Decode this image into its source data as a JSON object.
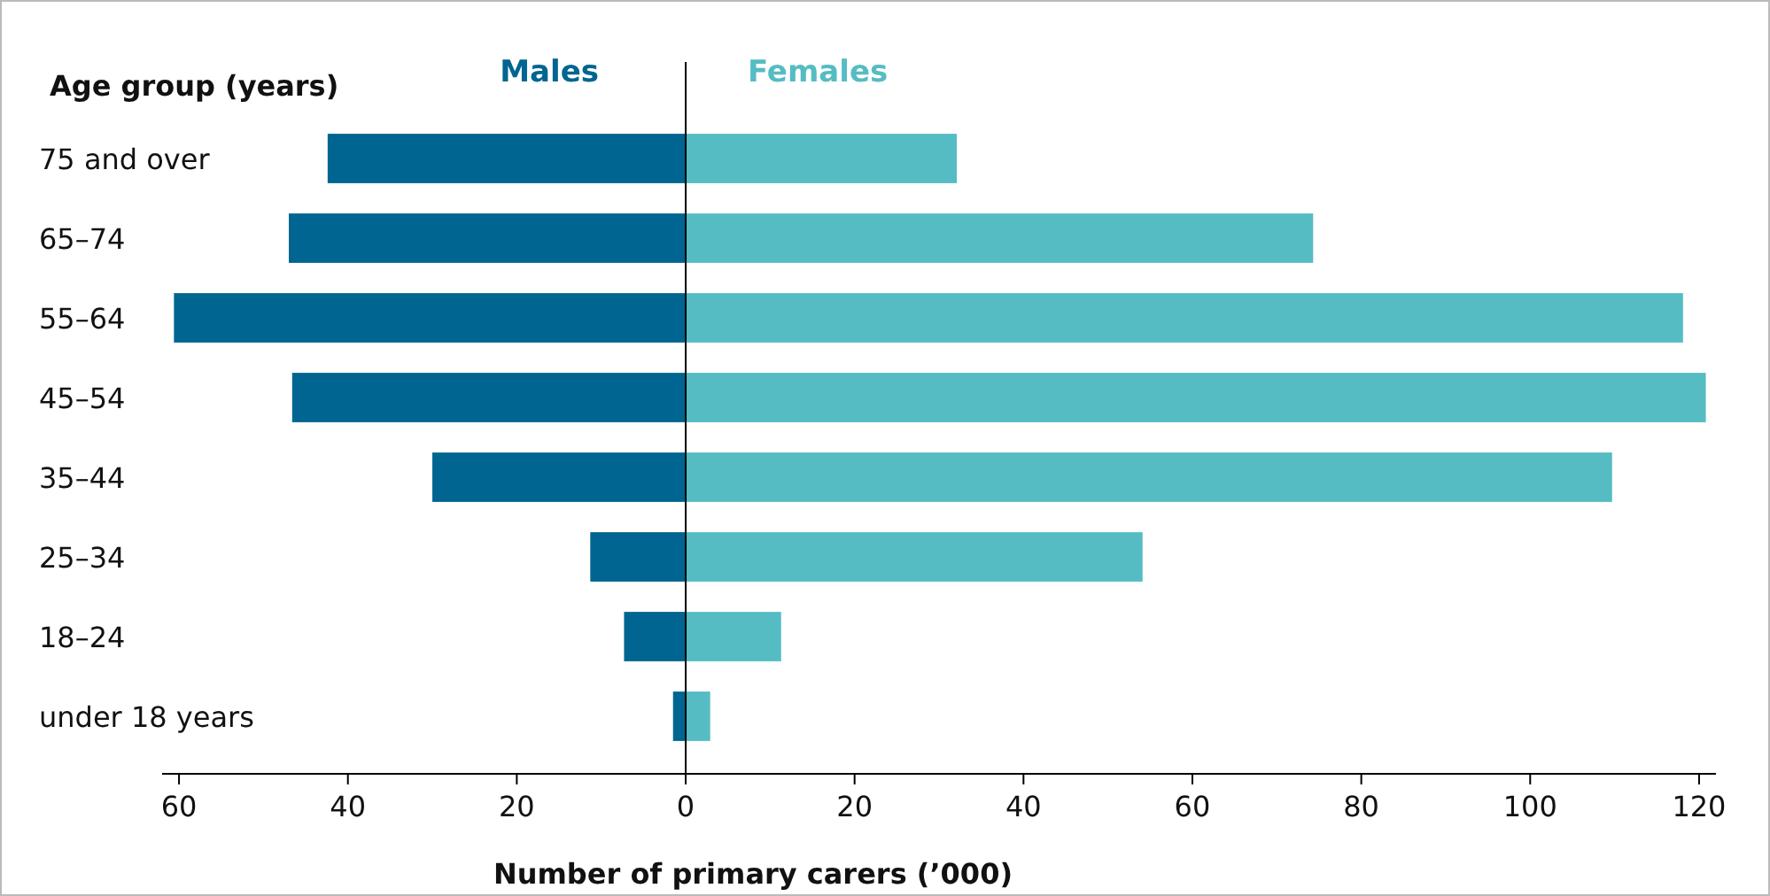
{
  "chart_data": {
    "type": "bar",
    "orientation": "horizontal",
    "stacked": true,
    "ylabel": "Age group (years)",
    "xlabel": "Number of primary carers (’000)",
    "categories": [
      "75 and over",
      "65–74",
      "55–64",
      "45–54",
      "35–44",
      "25–34",
      "18–24",
      "under 18 years"
    ],
    "series": [
      {
        "name": "Males",
        "color": "#006590",
        "values": [
          -42.4,
          -47,
          -60.6,
          -46.6,
          -30,
          -11.3,
          -7.3,
          -1.5
        ]
      },
      {
        "name": "Females",
        "color": "#55bcc3",
        "values": [
          32.1,
          74.3,
          118.1,
          120.8,
          109.7,
          54.1,
          11.3,
          2.9
        ]
      }
    ],
    "xlim": [
      -62,
      122
    ],
    "xticks": [
      {
        "value": -60,
        "label": "60"
      },
      {
        "value": -40,
        "label": "40"
      },
      {
        "value": -20,
        "label": "20"
      },
      0,
      20,
      40,
      60,
      80,
      100,
      120
    ],
    "legend": "top"
  }
}
